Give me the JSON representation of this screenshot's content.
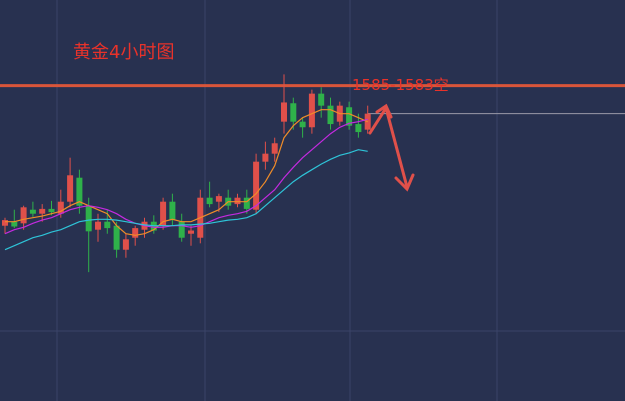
{
  "chart_data": {
    "type": "candlestick",
    "title": "黄金4小时图",
    "annotation": "1585-1583空",
    "ylim": [
      1545.6,
      1595.7
    ],
    "up_color": "#e0504a",
    "down_color": "#2fb14a",
    "level": 1585,
    "level_color": "#d9553a",
    "price_line": 1581.5,
    "open": [
      1567.5,
      1568.0,
      1567.8,
      1569.5,
      1569.0,
      1569.6,
      1569.0,
      1570.5,
      1573.5,
      1570.0,
      1567.0,
      1568.0,
      1567.5,
      1564.5,
      1566.0,
      1567.0,
      1568.0,
      1567.5,
      1570.5,
      1568.0,
      1566.5,
      1566.0,
      1571.0,
      1570.5,
      1571.0,
      1570.2,
      1571.0,
      1569.5,
      1575.5,
      1576.5,
      1580.5,
      1582.8,
      1580.5,
      1579.8,
      1584.0,
      1582.5,
      1580.5,
      1582.3,
      1580.2,
      1579.5
    ],
    "high": [
      1568.5,
      1569.5,
      1570.0,
      1570.5,
      1570.2,
      1570.6,
      1572.0,
      1576.0,
      1574.5,
      1571.0,
      1569.0,
      1569.5,
      1568.0,
      1566.5,
      1567.5,
      1568.5,
      1568.8,
      1571.0,
      1571.5,
      1569.0,
      1567.5,
      1572.0,
      1573.0,
      1571.5,
      1572.0,
      1571.5,
      1572.0,
      1576.5,
      1578.0,
      1578.5,
      1586.4,
      1583.5,
      1581.0,
      1584.5,
      1584.8,
      1583.5,
      1583.0,
      1583.0,
      1581.5,
      1582.5
    ],
    "low": [
      1566.5,
      1567.2,
      1567.0,
      1568.6,
      1568.0,
      1568.8,
      1568.5,
      1569.8,
      1569.0,
      1561.7,
      1565.5,
      1566.5,
      1563.5,
      1563.5,
      1565.0,
      1566.0,
      1566.5,
      1567.0,
      1567.5,
      1565.5,
      1565.0,
      1565.3,
      1569.8,
      1569.2,
      1569.5,
      1569.8,
      1569.0,
      1569.0,
      1574.5,
      1575.5,
      1579.0,
      1579.5,
      1578.5,
      1579.0,
      1581.0,
      1579.5,
      1580.0,
      1579.5,
      1578.5,
      1579.0
    ],
    "close": [
      1568.2,
      1567.4,
      1569.8,
      1569.0,
      1569.6,
      1569.2,
      1570.5,
      1573.8,
      1570.0,
      1566.8,
      1568.0,
      1567.2,
      1564.5,
      1565.8,
      1567.2,
      1568.0,
      1566.9,
      1570.5,
      1568.2,
      1566.0,
      1566.9,
      1571.0,
      1570.2,
      1571.2,
      1570.0,
      1571.0,
      1569.6,
      1575.5,
      1576.5,
      1577.8,
      1582.9,
      1580.5,
      1579.8,
      1584.0,
      1582.5,
      1580.2,
      1582.5,
      1580.0,
      1579.2,
      1581.5
    ],
    "series": [
      {
        "color": "#f08c28",
        "values": [
          1568.0,
          1568.0,
          1568.3,
          1568.5,
          1568.7,
          1569.0,
          1569.3,
          1570.0,
          1570.5,
          1570.0,
          1569.5,
          1569.0,
          1567.5,
          1566.5,
          1566.3,
          1566.5,
          1567.0,
          1568.0,
          1568.3,
          1568.0,
          1568.0,
          1568.5,
          1569.0,
          1569.5,
          1570.5,
          1570.5,
          1570.5,
          1571.5,
          1573.0,
          1575.0,
          1578.5,
          1580.0,
          1581.0,
          1581.5,
          1582.0,
          1582.0,
          1581.5,
          1581.5,
          1581.0,
          1580.5
        ]
      },
      {
        "color": "#c42ae0",
        "values": [
          1566.5,
          1567.0,
          1567.3,
          1567.8,
          1568.2,
          1568.5,
          1569.0,
          1569.5,
          1569.8,
          1570.0,
          1569.8,
          1569.5,
          1569.0,
          1568.3,
          1567.8,
          1567.5,
          1567.3,
          1567.3,
          1567.5,
          1567.5,
          1567.3,
          1567.5,
          1568.0,
          1568.5,
          1568.8,
          1569.0,
          1569.3,
          1570.0,
          1571.0,
          1572.0,
          1573.5,
          1574.8,
          1576.0,
          1577.0,
          1578.0,
          1579.0,
          1579.8,
          1580.3,
          1580.5,
          1580.8
        ]
      },
      {
        "color": "#2ec4d8",
        "values": [
          1564.5,
          1565.0,
          1565.5,
          1566.0,
          1566.3,
          1566.7,
          1567.0,
          1567.5,
          1568.0,
          1568.2,
          1568.3,
          1568.3,
          1568.2,
          1568.0,
          1567.8,
          1567.6,
          1567.5,
          1567.5,
          1567.5,
          1567.6,
          1567.6,
          1567.7,
          1567.8,
          1568.0,
          1568.2,
          1568.3,
          1568.5,
          1569.0,
          1570.0,
          1571.0,
          1572.0,
          1573.0,
          1573.8,
          1574.5,
          1575.2,
          1575.8,
          1576.3,
          1576.6,
          1577.0,
          1576.8
        ]
      }
    ]
  }
}
